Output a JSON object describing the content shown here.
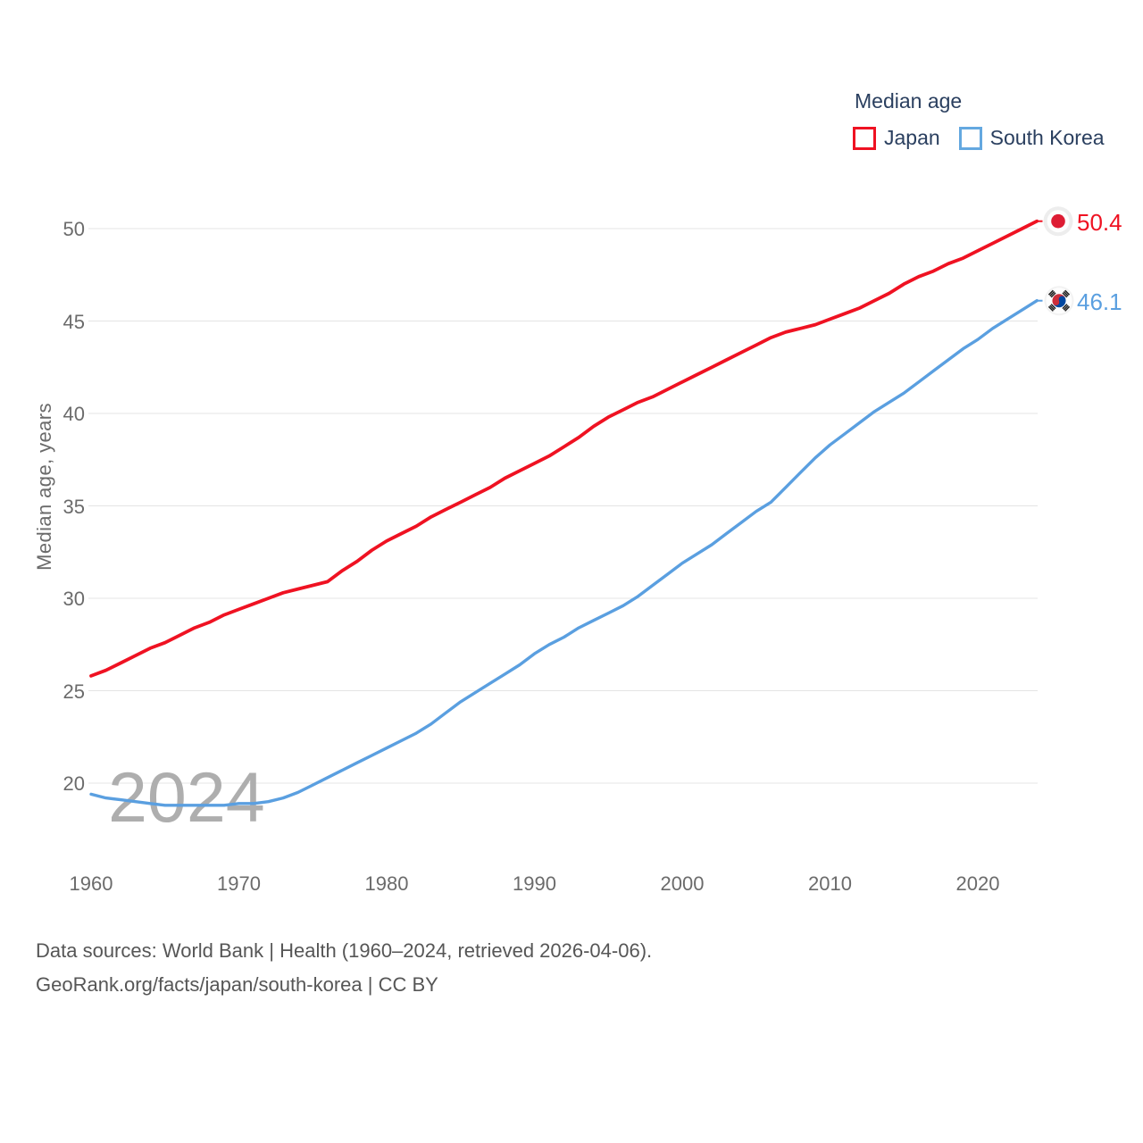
{
  "legend": {
    "title": "Median age",
    "items": [
      {
        "label": "Japan",
        "color": "#ef1222"
      },
      {
        "label": "South Korea",
        "color": "#64a8e0"
      }
    ]
  },
  "watermark": "2024",
  "footer": {
    "line1": "Data sources: World Bank | Health (1960–2024, retrieved 2026-04-06).",
    "line2": "GeoRank.org/facts/japan/south-korea | CC BY"
  },
  "colors": {
    "japan_line": "#ef1222",
    "korea_line": "#5a9fe0",
    "gridline": "#e4e4e4",
    "tick_text": "#6b6b6b",
    "legend_text": "#2a3f5f",
    "watermark": "#aeaeae",
    "marker_bg": "#ededed",
    "japan_flag_disc": "#dd1c33",
    "korea_flag_red": "#cd2e3a",
    "korea_flag_blue": "#0047a0",
    "korea_flag_trigram": "#1f1f1f"
  },
  "chart_data": {
    "type": "line",
    "title": "Median age",
    "xlabel": "",
    "ylabel": "Median age, years",
    "ylim": [
      18,
      51
    ],
    "xlim": [
      1960,
      2024
    ],
    "grid": true,
    "legend_position": "top-right",
    "yticks": [
      20,
      25,
      30,
      35,
      40,
      45,
      50
    ],
    "xticks": [
      1960,
      1970,
      1980,
      1990,
      2000,
      2010,
      2020
    ],
    "x": [
      1960,
      1961,
      1962,
      1963,
      1964,
      1965,
      1966,
      1967,
      1968,
      1969,
      1970,
      1971,
      1972,
      1973,
      1974,
      1975,
      1976,
      1977,
      1978,
      1979,
      1980,
      1981,
      1982,
      1983,
      1984,
      1985,
      1986,
      1987,
      1988,
      1989,
      1990,
      1991,
      1992,
      1993,
      1994,
      1995,
      1996,
      1997,
      1998,
      1999,
      2000,
      2001,
      2002,
      2003,
      2004,
      2005,
      2006,
      2007,
      2008,
      2009,
      2010,
      2011,
      2012,
      2013,
      2014,
      2015,
      2016,
      2017,
      2018,
      2019,
      2020,
      2021,
      2022,
      2023,
      2024
    ],
    "series": [
      {
        "name": "Japan",
        "color": "#ef1222",
        "end_label": "50.4",
        "end_value": 50.4,
        "values": [
          25.8,
          26.1,
          26.5,
          26.9,
          27.3,
          27.6,
          28.0,
          28.4,
          28.7,
          29.1,
          29.4,
          29.7,
          30.0,
          30.3,
          30.5,
          30.7,
          30.9,
          31.5,
          32.0,
          32.6,
          33.1,
          33.5,
          33.9,
          34.4,
          34.8,
          35.2,
          35.6,
          36.0,
          36.5,
          36.9,
          37.3,
          37.7,
          38.2,
          38.7,
          39.3,
          39.8,
          40.2,
          40.6,
          40.9,
          41.3,
          41.7,
          42.1,
          42.5,
          42.9,
          43.3,
          43.7,
          44.1,
          44.4,
          44.6,
          44.8,
          45.1,
          45.4,
          45.7,
          46.1,
          46.5,
          47.0,
          47.4,
          47.7,
          48.1,
          48.4,
          48.8,
          49.2,
          49.6,
          50.0,
          50.4
        ]
      },
      {
        "name": "South Korea",
        "color": "#5a9fe0",
        "end_label": "46.1",
        "end_value": 46.1,
        "values": [
          19.4,
          19.2,
          19.1,
          19.0,
          18.9,
          18.8,
          18.8,
          18.8,
          18.8,
          18.8,
          18.9,
          18.9,
          19.0,
          19.2,
          19.5,
          19.9,
          20.3,
          20.7,
          21.1,
          21.5,
          21.9,
          22.3,
          22.7,
          23.2,
          23.8,
          24.4,
          24.9,
          25.4,
          25.9,
          26.4,
          27.0,
          27.5,
          27.9,
          28.4,
          28.8,
          29.2,
          29.6,
          30.1,
          30.7,
          31.3,
          31.9,
          32.4,
          32.9,
          33.5,
          34.1,
          34.7,
          35.2,
          36.0,
          36.8,
          37.6,
          38.3,
          38.9,
          39.5,
          40.1,
          40.6,
          41.1,
          41.7,
          42.3,
          42.9,
          43.5,
          44.0,
          44.6,
          45.1,
          45.6,
          46.1
        ]
      }
    ]
  }
}
